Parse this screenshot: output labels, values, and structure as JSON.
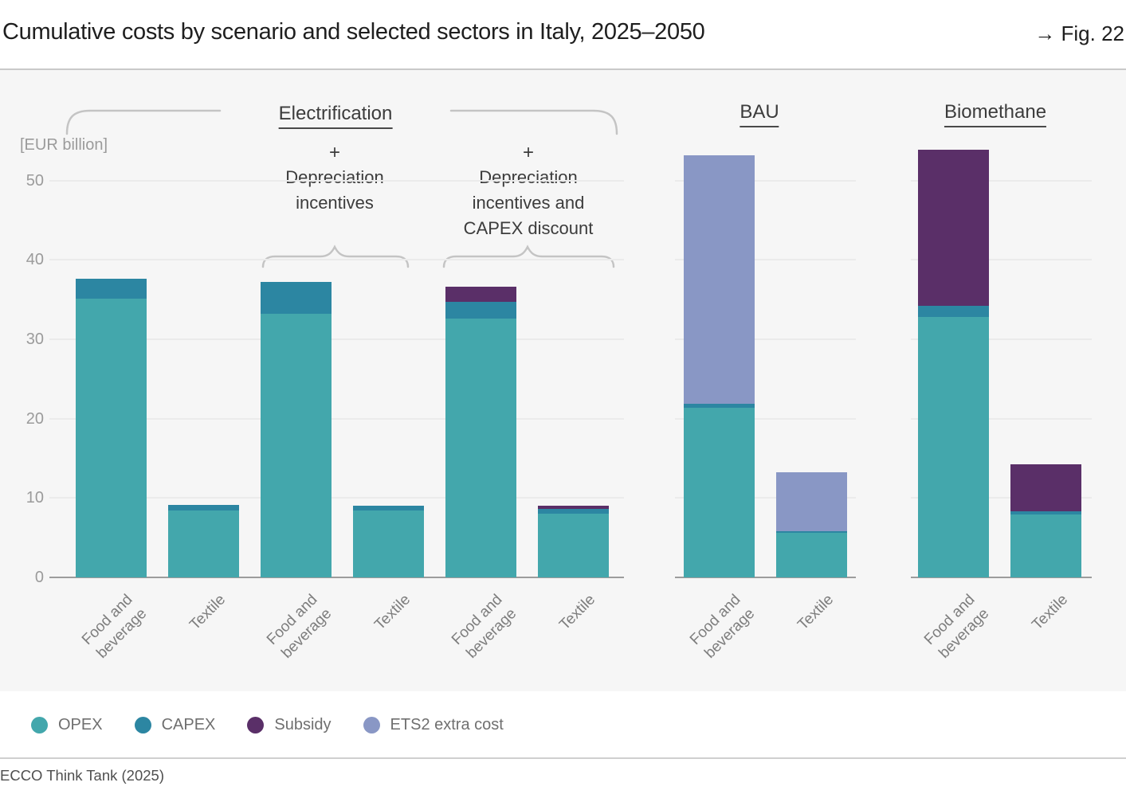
{
  "header": {
    "title": "Cumulative costs by scenario and selected sectors in Italy, 2025–2050",
    "fig_ref": "→ Fig. 22"
  },
  "axis": {
    "unit_label": "[EUR billion]"
  },
  "annotations": {
    "electrification": "Electrification",
    "bau": "BAU",
    "biomethane": "Biomethane",
    "dep1": {
      "plus": "+",
      "line1": "Depreciation",
      "line2": "incentives"
    },
    "dep2": {
      "plus": "+",
      "line1": "Depreciation",
      "line2": "incentives and",
      "line3": "CAPEX discount"
    }
  },
  "legend": [
    {
      "label": "OPEX",
      "color": "#43a7ac"
    },
    {
      "label": "CAPEX",
      "color": "#2c86a2"
    },
    {
      "label": "Subsidy",
      "color": "#5a2f68"
    },
    {
      "label": "ETS2 extra cost",
      "color": "#8997c5"
    }
  ],
  "footer": {
    "source": "ECCO Think Tank (2025)"
  },
  "chart_data": {
    "type": "bar",
    "stacked": true,
    "title": "Cumulative costs by scenario and selected sectors in Italy, 2025–2050",
    "ylabel": "[EUR billion]",
    "ylim": [
      0,
      50
    ],
    "yticks": [
      0,
      10,
      20,
      30,
      40,
      50
    ],
    "grid": true,
    "legend_position": "bottom",
    "series_order": [
      "OPEX",
      "CAPEX",
      "Subsidy",
      "ETS2 extra cost"
    ],
    "colors": {
      "OPEX": "#43a7ac",
      "CAPEX": "#2c86a2",
      "Subsidy": "#5a2f68",
      "ETS2 extra cost": "#8997c5"
    },
    "panels": [
      {
        "scenario": "Electrification",
        "bars": [
          {
            "group": "Electrification",
            "category": "Food and beverage",
            "category_lines": [
              "Food and",
              "beverage"
            ],
            "segments": {
              "OPEX": 35.1,
              "CAPEX": 2.5
            }
          },
          {
            "group": "Electrification",
            "category": "Textile",
            "category_lines": [
              "Textile"
            ],
            "segments": {
              "OPEX": 8.4,
              "CAPEX": 0.7
            }
          },
          {
            "group": "+ Depreciation incentives",
            "category": "Food and beverage",
            "category_lines": [
              "Food and",
              "beverage"
            ],
            "segments": {
              "OPEX": 33.2,
              "CAPEX": 4.0
            }
          },
          {
            "group": "+ Depreciation incentives",
            "category": "Textile",
            "category_lines": [
              "Textile"
            ],
            "segments": {
              "OPEX": 8.4,
              "CAPEX": 0.6
            }
          },
          {
            "group": "+ Depreciation incentives and CAPEX discount",
            "category": "Food and beverage",
            "category_lines": [
              "Food and",
              "beverage"
            ],
            "segments": {
              "OPEX": 32.6,
              "CAPEX": 2.1,
              "Subsidy": 1.9
            }
          },
          {
            "group": "+ Depreciation incentives and CAPEX discount",
            "category": "Textile",
            "category_lines": [
              "Textile"
            ],
            "segments": {
              "OPEX": 8.0,
              "CAPEX": 0.6,
              "Subsidy": 0.4
            }
          }
        ]
      },
      {
        "scenario": "BAU",
        "bars": [
          {
            "group": "BAU",
            "category": "Food and beverage",
            "category_lines": [
              "Food and",
              "beverage"
            ],
            "segments": {
              "OPEX": 21.4,
              "CAPEX": 0.5,
              "ETS2 extra cost": 31.3
            }
          },
          {
            "group": "BAU",
            "category": "Textile",
            "category_lines": [
              "Textile"
            ],
            "segments": {
              "OPEX": 5.6,
              "CAPEX": 0.2,
              "ETS2 extra cost": 7.4
            }
          }
        ]
      },
      {
        "scenario": "Biomethane",
        "bars": [
          {
            "group": "Biomethane",
            "category": "Food and beverage",
            "category_lines": [
              "Food and",
              "beverage"
            ],
            "segments": {
              "OPEX": 32.8,
              "CAPEX": 1.4,
              "Subsidy": 19.7
            }
          },
          {
            "group": "Biomethane",
            "category": "Textile",
            "category_lines": [
              "Textile"
            ],
            "segments": {
              "OPEX": 7.9,
              "CAPEX": 0.4,
              "Subsidy": 5.9
            }
          }
        ]
      }
    ]
  }
}
